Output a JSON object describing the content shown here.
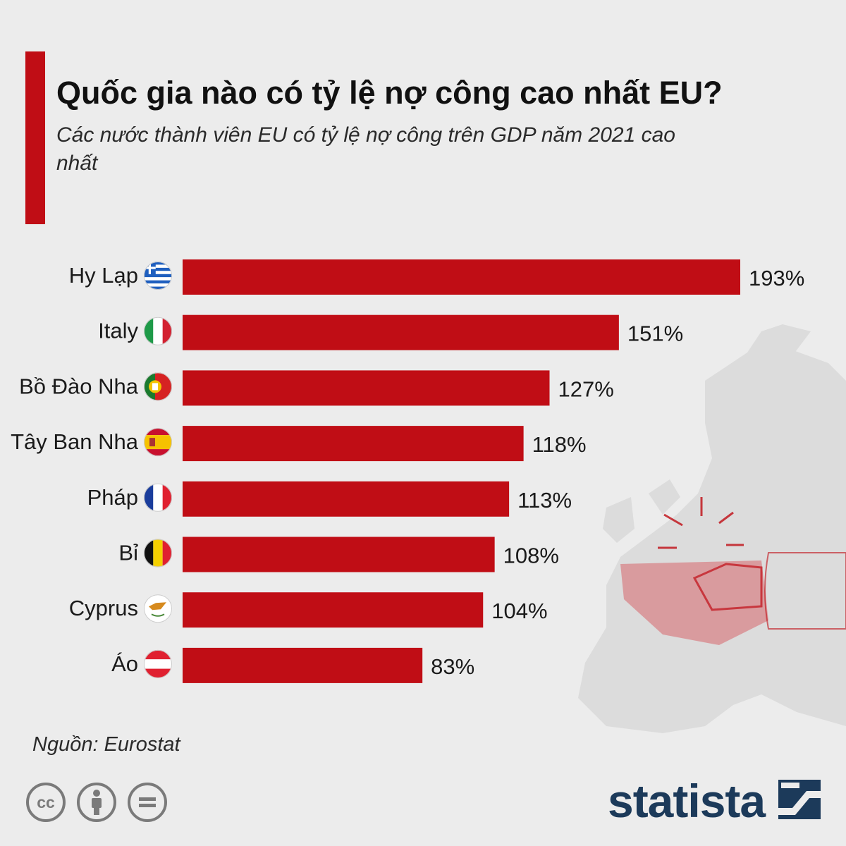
{
  "title": "Quốc gia nào có tỷ lệ nợ công cao nhất EU?",
  "subtitle": "Các nước thành viên EU có tỷ lệ nợ công trên GDP năm 2021 cao nhất",
  "source": "Nguồn: Eurostat",
  "brand": "statista",
  "colors": {
    "bar": "#c00d15",
    "accent": "#c00d15",
    "background": "#ececec",
    "brand": "#1c3a5a"
  },
  "icons": [
    "creative-commons-icon",
    "attribution-icon",
    "no-derivatives-icon",
    "statista-logo-icon"
  ],
  "chart_data": {
    "type": "bar",
    "orientation": "horizontal",
    "categories": [
      "Hy Lạp",
      "Italy",
      "Bồ Đào Nha",
      "Tây Ban Nha",
      "Pháp",
      "Bỉ",
      "Cyprus",
      "Áo"
    ],
    "flags": [
      "greece-flag-icon",
      "italy-flag-icon",
      "portugal-flag-icon",
      "spain-flag-icon",
      "france-flag-icon",
      "belgium-flag-icon",
      "cyprus-flag-icon",
      "austria-flag-icon"
    ],
    "values": [
      193,
      151,
      127,
      118,
      113,
      108,
      104,
      83
    ],
    "value_labels": [
      "193%",
      "151%",
      "127%",
      "118%",
      "113%",
      "108%",
      "104%",
      "83%"
    ],
    "unit": "%",
    "xlim": [
      0,
      193
    ],
    "grid": false,
    "legend": "none"
  }
}
